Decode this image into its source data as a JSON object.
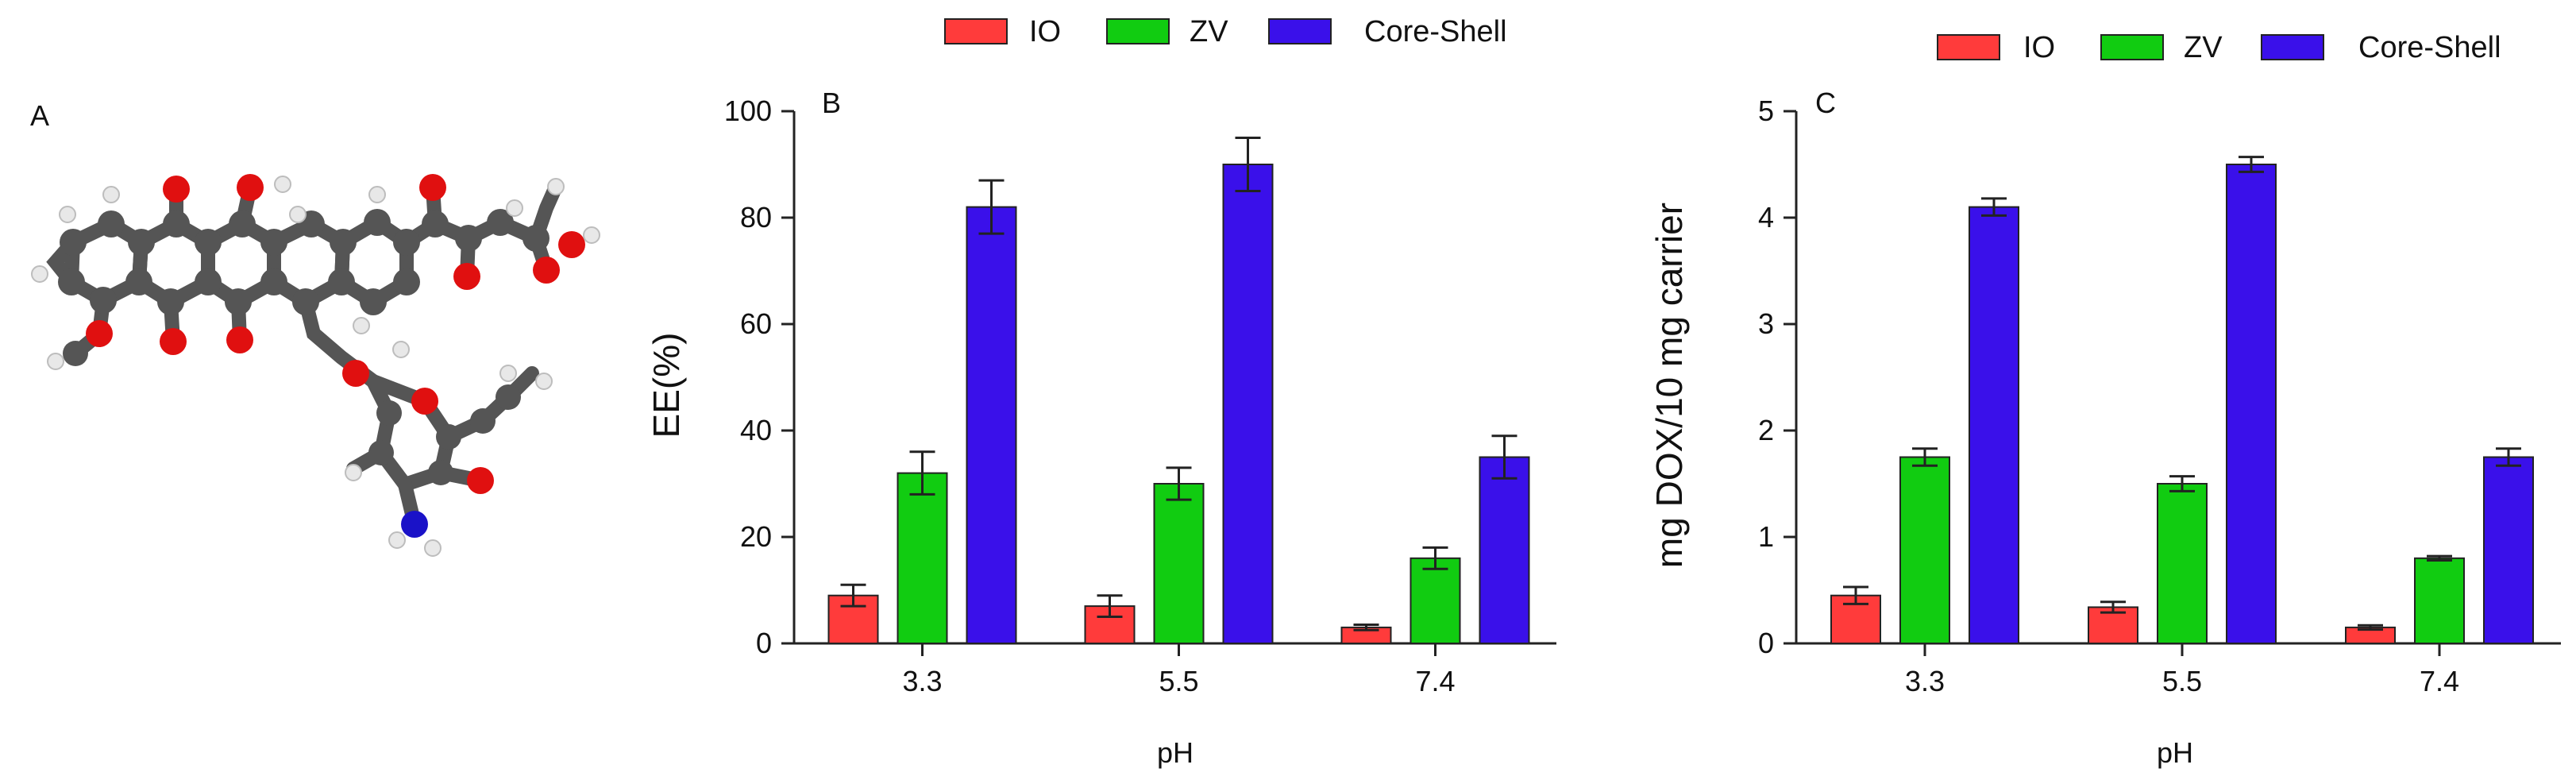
{
  "panel_a": {
    "label": "A",
    "image_name": "doxorubicin-molecule-3d-model"
  },
  "chart_data": [
    {
      "type": "bar",
      "panel_label": "B",
      "title": "",
      "xlabel": "pH",
      "ylabel": "EE(%)",
      "categories": [
        "3.3",
        "5.5",
        "7.4"
      ],
      "ylim": [
        0,
        100
      ],
      "yticks": [
        0,
        20,
        40,
        60,
        80,
        100
      ],
      "ytick_labels": [
        "0",
        "20",
        "40",
        "60",
        "80",
        "100"
      ],
      "legend_position": "top-center",
      "series": [
        {
          "name": "IO",
          "color": "#ff3b3b",
          "values": [
            9,
            7,
            3
          ],
          "errors": [
            2,
            2,
            0.5
          ]
        },
        {
          "name": "ZV",
          "color": "#11cc11",
          "values": [
            32,
            30,
            16
          ],
          "errors": [
            4,
            3,
            2
          ]
        },
        {
          "name": "Core-Shell",
          "color": "#3a10ea",
          "values": [
            82,
            90,
            35
          ],
          "errors": [
            5,
            5,
            4
          ]
        }
      ]
    },
    {
      "type": "bar",
      "panel_label": "C",
      "title": "",
      "xlabel": "pH",
      "ylabel": "mg DOX/10 mg carrier",
      "categories": [
        "3.3",
        "5.5",
        "7.4"
      ],
      "ylim": [
        0,
        5
      ],
      "yticks": [
        0,
        1,
        2,
        3,
        4,
        5
      ],
      "ytick_labels": [
        "0",
        "1",
        "2",
        "3",
        "4",
        "5"
      ],
      "legend_position": "top-right",
      "series": [
        {
          "name": "IO",
          "color": "#ff3b3b",
          "values": [
            0.45,
            0.34,
            0.15
          ],
          "errors": [
            0.08,
            0.05,
            0.02
          ]
        },
        {
          "name": "ZV",
          "color": "#11cc11",
          "values": [
            1.75,
            1.5,
            0.8
          ],
          "errors": [
            0.08,
            0.07,
            0.02
          ]
        },
        {
          "name": "Core-Shell",
          "color": "#3a10ea",
          "values": [
            4.1,
            4.5,
            1.75
          ],
          "errors": [
            0.08,
            0.07,
            0.08
          ]
        }
      ]
    }
  ]
}
